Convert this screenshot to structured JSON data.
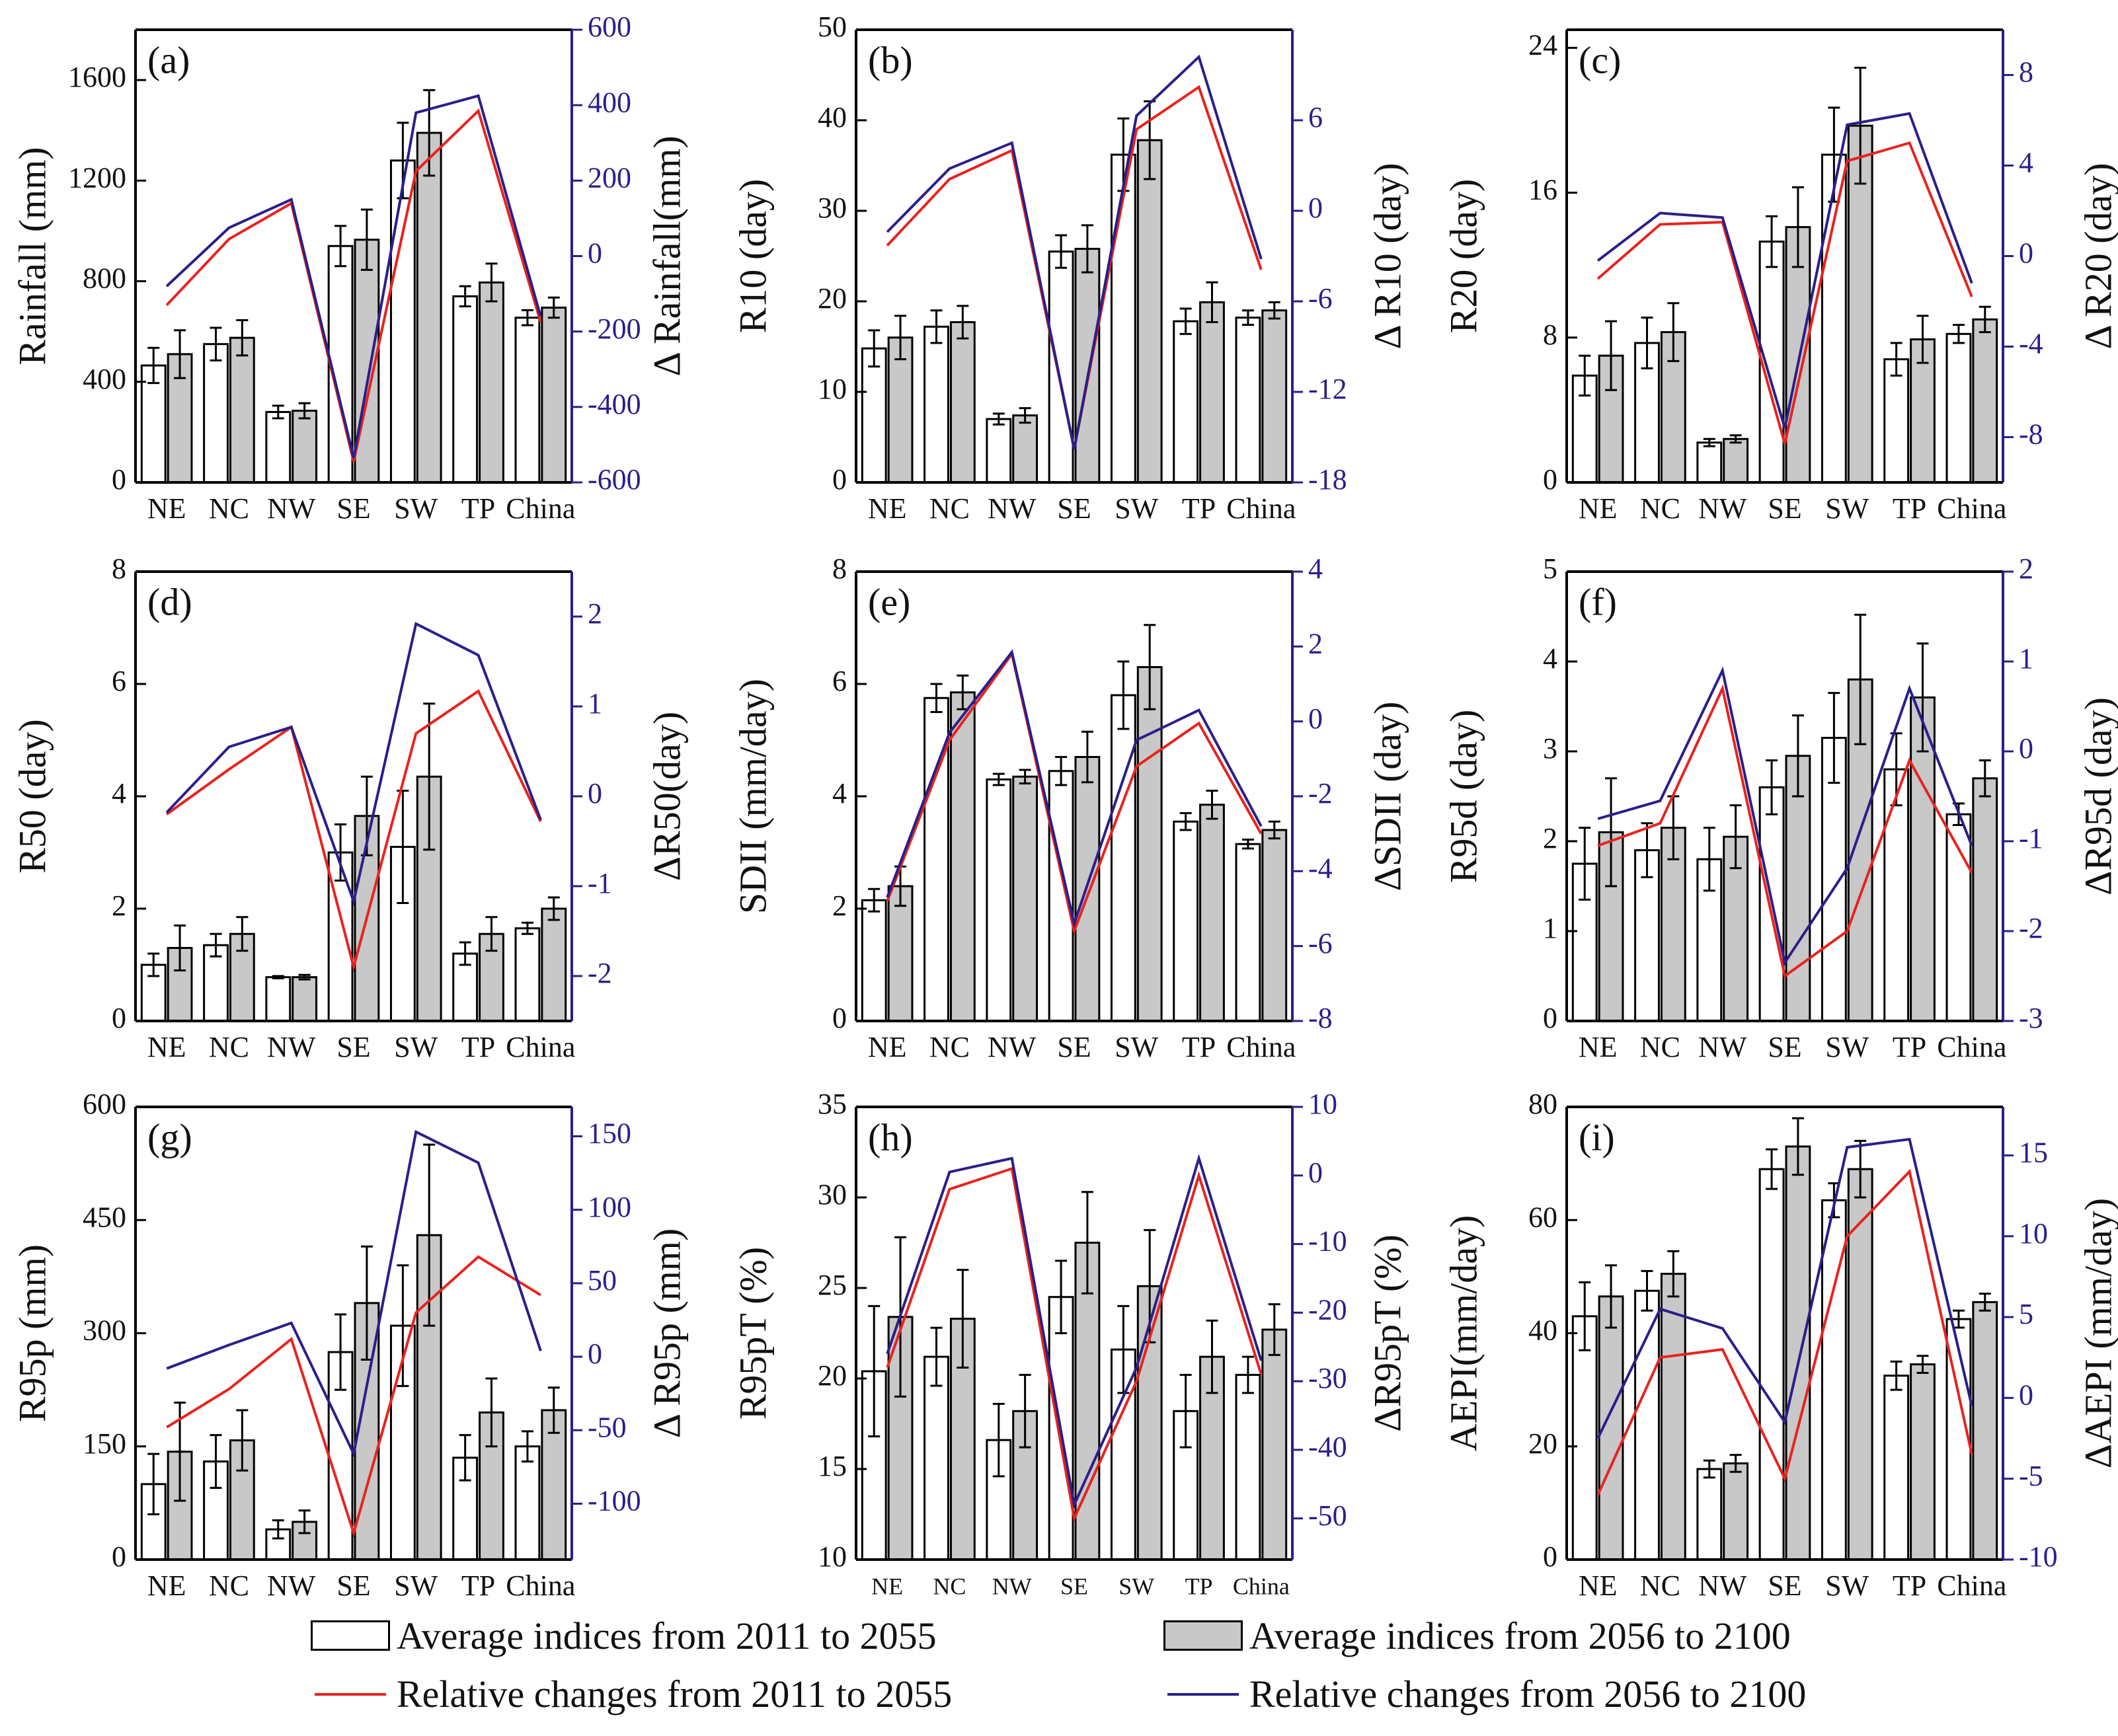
{
  "categories": [
    "NE",
    "NC",
    "NW",
    "SE",
    "SW",
    "TP",
    "China"
  ],
  "colors": {
    "open_bar": "#ffffff",
    "gray_bar": "#c8c8c8",
    "red_line": "#e8231e",
    "blue_line": "#2a1f8a",
    "right_axis": "#2a1f8a"
  },
  "legend": {
    "open_bar": "Average indices from 2011 to 2055",
    "gray_bar": "Average indices from 2056 to 2100",
    "red_line": "Relative changes from 2011 to 2055",
    "blue_line": "Relative changes from 2056 to 2100"
  },
  "chart_data": [
    {
      "type": "bar",
      "label": "(a)",
      "ylabel": "Rainfall (mm)",
      "y2label": "Δ Rainfall(mm)",
      "ylim": [
        0,
        1800
      ],
      "yticks": [
        0,
        400,
        800,
        1200,
        1600
      ],
      "y2lim": [
        -600,
        600
      ],
      "y2ticks": [
        -600,
        -400,
        -200,
        0,
        200,
        400,
        600
      ],
      "series": [
        {
          "name": "2011-2055",
          "values": [
            465,
            550,
            280,
            940,
            1280,
            740,
            655
          ],
          "errors": [
            70,
            65,
            25,
            80,
            150,
            40,
            30
          ]
        },
        {
          "name": "2056-2100",
          "values": [
            510,
            575,
            285,
            965,
            1390,
            795,
            695
          ],
          "errors": [
            95,
            70,
            30,
            120,
            170,
            75,
            40
          ]
        }
      ],
      "lines": [
        {
          "name": "Relative changes from 2011 to 2055",
          "values": [
            -130,
            45,
            140,
            -545,
            225,
            385,
            -175
          ]
        },
        {
          "name": "Relative changes from 2056 to 2100",
          "values": [
            -80,
            75,
            150,
            -535,
            380,
            425,
            -160
          ]
        }
      ]
    },
    {
      "type": "bar",
      "label": "(b)",
      "ylabel": "R10 (day)",
      "y2label": "Δ R10 (day)",
      "ylim": [
        0,
        50
      ],
      "yticks": [
        0,
        10,
        20,
        30,
        40,
        50
      ],
      "y2lim": [
        -18,
        12
      ],
      "y2ticks": [
        -18,
        -12,
        -6,
        0,
        6
      ],
      "series": [
        {
          "name": "2011-2055",
          "values": [
            14.8,
            17.2,
            7.0,
            25.5,
            36.2,
            17.8,
            18.2
          ],
          "errors": [
            2.0,
            1.8,
            0.6,
            1.8,
            4.0,
            1.4,
            0.8
          ]
        },
        {
          "name": "2056-2100",
          "values": [
            16.0,
            17.7,
            7.4,
            25.8,
            37.8,
            19.9,
            19.0
          ],
          "errors": [
            2.4,
            1.8,
            0.8,
            2.6,
            4.3,
            2.2,
            0.9
          ]
        }
      ],
      "lines": [
        {
          "name": "Relative changes from 2011 to 2055",
          "values": [
            -2.3,
            2.1,
            4.0,
            -15.8,
            5.4,
            8.2,
            -3.9
          ]
        },
        {
          "name": "Relative changes from 2056 to 2100",
          "values": [
            -1.4,
            2.8,
            4.5,
            -15.8,
            6.3,
            10.2,
            -3.2
          ]
        }
      ]
    },
    {
      "type": "bar",
      "label": "(c)",
      "ylabel": "R20 (day)",
      "y2label": "Δ R20 (day)",
      "ylim": [
        0,
        25
      ],
      "yticks": [
        0,
        8,
        16,
        24
      ],
      "y2lim": [
        -10,
        10
      ],
      "y2ticks": [
        -8,
        -4,
        0,
        4,
        8
      ],
      "series": [
        {
          "name": "2011-2055",
          "values": [
            5.9,
            7.7,
            2.2,
            13.3,
            18.1,
            6.8,
            8.2
          ],
          "errors": [
            1.1,
            1.4,
            0.2,
            1.4,
            2.6,
            0.9,
            0.5
          ]
        },
        {
          "name": "2056-2100",
          "values": [
            7.0,
            8.3,
            2.4,
            14.1,
            19.7,
            7.9,
            9.0
          ],
          "errors": [
            1.9,
            1.6,
            0.2,
            2.2,
            3.2,
            1.3,
            0.7
          ]
        }
      ],
      "lines": [
        {
          "name": "Relative changes from 2011 to 2055",
          "values": [
            -1.0,
            1.4,
            1.5,
            -8.3,
            4.2,
            5.0,
            -1.8
          ]
        },
        {
          "name": "Relative changes from 2056 to 2100",
          "values": [
            -0.2,
            1.9,
            1.7,
            -7.6,
            5.8,
            6.3,
            -1.2
          ]
        }
      ]
    },
    {
      "type": "bar",
      "label": "(d)",
      "ylabel": "R50 (day)",
      "y2label": "ΔR50(day)",
      "ylim": [
        0,
        8
      ],
      "yticks": [
        0,
        2,
        4,
        6,
        8
      ],
      "y2lim": [
        -2.5,
        2.5
      ],
      "y2ticks": [
        -2,
        -1,
        0,
        1,
        2
      ],
      "series": [
        {
          "name": "2011-2055",
          "values": [
            1.0,
            1.35,
            0.78,
            3.0,
            3.1,
            1.2,
            1.65
          ],
          "errors": [
            0.2,
            0.2,
            0.02,
            0.5,
            1.0,
            0.2,
            0.1
          ]
        },
        {
          "name": "2056-2100",
          "values": [
            1.3,
            1.55,
            0.78,
            3.65,
            4.35,
            1.55,
            2.0
          ],
          "errors": [
            0.4,
            0.3,
            0.04,
            0.7,
            1.3,
            0.3,
            0.2
          ]
        }
      ],
      "lines": [
        {
          "name": "Relative changes from 2011 to 2055",
          "values": [
            -0.2,
            0.3,
            0.77,
            -1.9,
            0.7,
            1.17,
            -0.28
          ]
        },
        {
          "name": "Relative changes from 2056 to 2100",
          "values": [
            -0.18,
            0.55,
            0.77,
            -1.17,
            1.92,
            1.57,
            -0.26
          ]
        }
      ]
    },
    {
      "type": "bar",
      "label": "(e)",
      "ylabel": "SDII (mm/day)",
      "y2label": "ΔSDII (day)",
      "ylim": [
        0,
        8
      ],
      "yticks": [
        0,
        2,
        4,
        6,
        8
      ],
      "y2lim": [
        -8,
        4
      ],
      "y2ticks": [
        -8,
        -6,
        -4,
        -2,
        0,
        2,
        4
      ],
      "series": [
        {
          "name": "2011-2055",
          "values": [
            2.15,
            5.75,
            4.3,
            4.45,
            5.8,
            3.55,
            3.15
          ],
          "errors": [
            0.2,
            0.25,
            0.1,
            0.25,
            0.6,
            0.15,
            0.08
          ]
        },
        {
          "name": "2056-2100",
          "values": [
            2.4,
            5.85,
            4.35,
            4.7,
            6.3,
            3.85,
            3.4
          ],
          "errors": [
            0.35,
            0.3,
            0.12,
            0.45,
            0.75,
            0.25,
            0.15
          ]
        }
      ],
      "lines": [
        {
          "name": "Relative changes from 2011 to 2055",
          "values": [
            -4.8,
            -0.5,
            1.8,
            -5.6,
            -1.2,
            -0.05,
            -3.0
          ]
        },
        {
          "name": "Relative changes from 2056 to 2100",
          "values": [
            -4.7,
            -0.3,
            1.85,
            -5.4,
            -0.5,
            0.3,
            -2.8
          ]
        }
      ]
    },
    {
      "type": "bar",
      "label": "(f)",
      "ylabel": "R95d (day)",
      "y2label": "ΔR95d (day)",
      "ylim": [
        0,
        5
      ],
      "yticks": [
        0,
        1,
        2,
        3,
        4,
        5
      ],
      "y2lim": [
        -3,
        2
      ],
      "y2ticks": [
        -3,
        -2,
        -1,
        0,
        1,
        2
      ],
      "series": [
        {
          "name": "2011-2055",
          "values": [
            1.75,
            1.9,
            1.8,
            2.6,
            3.15,
            2.8,
            2.3
          ],
          "errors": [
            0.4,
            0.3,
            0.35,
            0.3,
            0.5,
            0.4,
            0.12
          ]
        },
        {
          "name": "2056-2100",
          "values": [
            2.1,
            2.15,
            2.05,
            2.95,
            3.8,
            3.6,
            2.7
          ],
          "errors": [
            0.6,
            0.35,
            0.35,
            0.45,
            0.72,
            0.6,
            0.2
          ]
        }
      ],
      "lines": [
        {
          "name": "Relative changes from 2011 to 2055",
          "values": [
            -1.05,
            -0.8,
            0.7,
            -2.5,
            -2.0,
            -0.1,
            -1.35
          ]
        },
        {
          "name": "Relative changes from 2056 to 2100",
          "values": [
            -0.75,
            -0.55,
            0.9,
            -2.35,
            -1.3,
            0.7,
            -1.05
          ]
        }
      ]
    },
    {
      "type": "bar",
      "label": "(g)",
      "ylabel": "R95p (mm)",
      "y2label": "Δ R95p (mm)",
      "ylim": [
        0,
        600
      ],
      "yticks": [
        0,
        150,
        300,
        450,
        600
      ],
      "y2lim": [
        -138,
        170
      ],
      "y2ticks": [
        -100,
        -50,
        0,
        50,
        100,
        150
      ],
      "series": [
        {
          "name": "2011-2055",
          "values": [
            100,
            130,
            40,
            275,
            310,
            135,
            150
          ],
          "errors": [
            40,
            35,
            12,
            50,
            80,
            30,
            20
          ]
        },
        {
          "name": "2056-2100",
          "values": [
            143,
            158,
            50,
            340,
            430,
            195,
            198
          ],
          "errors": [
            65,
            40,
            15,
            75,
            120,
            45,
            30
          ]
        }
      ],
      "lines": [
        {
          "name": "Relative changes from 2011 to 2055",
          "values": [
            -48,
            -22,
            12,
            -120,
            30,
            68,
            42
          ]
        },
        {
          "name": "Relative changes from 2056 to 2100",
          "values": [
            -8,
            8,
            23,
            -66,
            153,
            132,
            4
          ]
        }
      ]
    },
    {
      "type": "bar",
      "label": "(h)",
      "ylabel": "R95pT (%)",
      "y2label": "ΔR95pT (%)",
      "ylim": [
        10,
        35
      ],
      "yticks": [
        10,
        15,
        20,
        25,
        30,
        35
      ],
      "y2lim": [
        -56,
        10
      ],
      "y2ticks": [
        -50,
        -40,
        -30,
        -20,
        -10,
        0,
        10
      ],
      "series": [
        {
          "name": "2011-2055",
          "values": [
            20.4,
            21.2,
            16.6,
            24.5,
            21.6,
            18.2,
            20.2
          ],
          "errors": [
            3.6,
            1.6,
            2.0,
            2.0,
            2.4,
            2.0,
            1.0
          ]
        },
        {
          "name": "2056-2100",
          "values": [
            23.4,
            23.3,
            18.2,
            27.5,
            25.1,
            21.2,
            22.7
          ],
          "errors": [
            4.4,
            2.7,
            2.0,
            2.8,
            3.1,
            2.0,
            1.4
          ]
        }
      ],
      "lines": [
        {
          "name": "Relative changes from 2011 to 2055",
          "values": [
            -28,
            -2,
            1,
            -50,
            -30,
            0,
            -29
          ]
        },
        {
          "name": "Relative changes from 2056 to 2100",
          "values": [
            -26,
            0.5,
            2.5,
            -48,
            -28,
            2.5,
            -27
          ]
        }
      ]
    },
    {
      "type": "bar",
      "label": "(i)",
      "ylabel": "AEPI(mm/day)",
      "y2label": "ΔAEPI (mm/day)",
      "ylim": [
        0,
        80
      ],
      "yticks": [
        0,
        20,
        40,
        60,
        80
      ],
      "y2lim": [
        -10,
        18
      ],
      "y2ticks": [
        -10,
        -5,
        0,
        5,
        10,
        15
      ],
      "series": [
        {
          "name": "2011-2055",
          "values": [
            43,
            47.5,
            16,
            69,
            63.5,
            32.5,
            42.5
          ],
          "errors": [
            6,
            3.5,
            1.5,
            3.5,
            3,
            2.5,
            1.5
          ]
        },
        {
          "name": "2056-2100",
          "values": [
            46.5,
            50.5,
            17,
            73,
            69,
            34.5,
            45.5
          ],
          "errors": [
            5.5,
            4,
            1.5,
            5,
            5,
            1.5,
            1.5
          ]
        }
      ],
      "lines": [
        {
          "name": "Relative changes from 2011 to 2055",
          "values": [
            -6,
            2.5,
            3,
            -5,
            10,
            14,
            -3.5
          ]
        },
        {
          "name": "Relative changes from 2056 to 2100",
          "values": [
            -2.5,
            5.5,
            4.3,
            -1.5,
            15.5,
            16,
            -0.5
          ]
        }
      ]
    }
  ]
}
